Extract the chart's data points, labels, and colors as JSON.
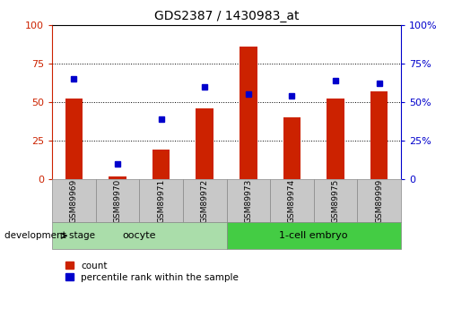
{
  "title": "GDS2387 / 1430983_at",
  "samples": [
    "GSM89969",
    "GSM89970",
    "GSM89971",
    "GSM89972",
    "GSM89973",
    "GSM89974",
    "GSM89975",
    "GSM89999"
  ],
  "counts": [
    52,
    2,
    19,
    46,
    86,
    40,
    52,
    57
  ],
  "percentiles": [
    65,
    10,
    39,
    60,
    55,
    54,
    64,
    62
  ],
  "groups": [
    {
      "label": "oocyte",
      "start": 0,
      "end": 4,
      "color": "#aaddaa"
    },
    {
      "label": "1-cell embryo",
      "start": 4,
      "end": 8,
      "color": "#44cc44"
    }
  ],
  "bar_color": "#cc2200",
  "dot_color": "#0000cc",
  "ylim_left": [
    0,
    100
  ],
  "ylim_right": [
    0,
    100
  ],
  "yticks_left": [
    0,
    25,
    50,
    75,
    100
  ],
  "yticks_right": [
    0,
    25,
    50,
    75,
    100
  ],
  "grid_color": "black",
  "xlabel_area_color": "#c8c8c8",
  "bar_width": 0.4,
  "left_axis_color": "#cc2200",
  "right_axis_color": "#0000cc",
  "legend_items": [
    {
      "label": "count",
      "color": "#cc2200"
    },
    {
      "label": "percentile rank within the sample",
      "color": "#0000cc"
    }
  ],
  "dev_stage_label": "development stage",
  "fig_width": 5.05,
  "fig_height": 3.45
}
